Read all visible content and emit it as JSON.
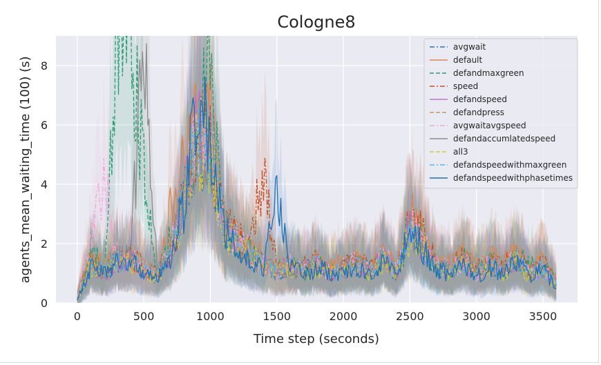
{
  "chart_data": {
    "type": "line",
    "title": "Cologne8",
    "xlabel": "Time step (seconds)",
    "ylabel": "agents_mean_waiting_time (100) (s)",
    "xlim": [
      -160,
      3760
    ],
    "ylim": [
      0,
      9
    ],
    "xticks": [
      0,
      500,
      1000,
      1500,
      2000,
      2500,
      3000,
      3500
    ],
    "yticks": [
      0,
      2,
      4,
      6,
      8
    ],
    "grid": true,
    "background": "#eaeaf2",
    "legend_position": "top-right",
    "series": [
      {
        "name": "avgwait",
        "color": "#1f77b4",
        "dash": "dashdot",
        "x": [
          0,
          100,
          200,
          300,
          400,
          500,
          600,
          700,
          800,
          900,
          1000,
          1100,
          1200,
          1300,
          1400,
          1500,
          1600,
          1700,
          1800,
          1900,
          2000,
          2100,
          2200,
          2300,
          2400,
          2500,
          2600,
          2700,
          2800,
          2900,
          3000,
          3100,
          3200,
          3300,
          3400,
          3500,
          3600
        ],
        "y": [
          0.1,
          1.3,
          1.0,
          1.4,
          1.5,
          1.1,
          0.9,
          1.5,
          3.5,
          5.6,
          5.0,
          2.8,
          2.0,
          1.6,
          1.3,
          1.0,
          1.2,
          1.1,
          1.3,
          1.0,
          1.2,
          1.3,
          1.1,
          1.5,
          1.0,
          2.4,
          1.8,
          1.2,
          1.1,
          1.4,
          1.0,
          1.3,
          1.1,
          1.5,
          1.0,
          1.1,
          0.6
        ]
      },
      {
        "name": "default",
        "color": "#dd8452",
        "dash": "solid",
        "x": [
          0,
          100,
          200,
          300,
          400,
          500,
          600,
          700,
          800,
          900,
          1000,
          1100,
          1200,
          1300,
          1400,
          1500,
          1600,
          1700,
          1800,
          1900,
          2000,
          2100,
          2200,
          2300,
          2400,
          2500,
          2600,
          2700,
          2800,
          2900,
          3000,
          3100,
          3200,
          3300,
          3400,
          3500,
          3600
        ],
        "y": [
          0.2,
          1.5,
          1.2,
          1.6,
          1.4,
          1.3,
          1.0,
          3.0,
          4.5,
          6.0,
          6.5,
          2.6,
          2.4,
          1.9,
          1.5,
          1.0,
          1.4,
          1.0,
          1.5,
          1.2,
          1.3,
          1.6,
          1.2,
          1.7,
          1.1,
          3.0,
          2.4,
          1.4,
          1.3,
          1.6,
          1.2,
          1.5,
          1.3,
          1.8,
          1.1,
          1.4,
          0.8
        ]
      },
      {
        "name": "defandmaxgreen",
        "color": "#2a9d6e",
        "dash": "dashed",
        "x": [
          0,
          100,
          200,
          300,
          400,
          500,
          600,
          700,
          800,
          900,
          1000,
          1100,
          1200,
          1300,
          1400,
          1500,
          1600,
          1700,
          1800,
          1900,
          2000,
          2100,
          2200,
          2300,
          2400,
          2500,
          2600,
          2700,
          2800,
          2900,
          3000,
          3100,
          3200,
          3300,
          3400,
          3500,
          3600
        ],
        "y": [
          0.1,
          1.6,
          1.3,
          9.0,
          9.0,
          4.5,
          1.1,
          2.1,
          3.6,
          5.8,
          7.5,
          2.5,
          2.1,
          1.7,
          1.2,
          1.1,
          1.3,
          1.0,
          1.4,
          1.1,
          1.1,
          1.4,
          1.0,
          1.6,
          1.2,
          2.6,
          2.0,
          1.3,
          1.0,
          1.5,
          1.1,
          1.4,
          1.0,
          1.6,
          1.2,
          1.3,
          0.7
        ]
      },
      {
        "name": "speed",
        "color": "#c44e1f",
        "dash": "dashdot",
        "x": [
          0,
          100,
          200,
          300,
          400,
          500,
          600,
          700,
          800,
          900,
          1000,
          1100,
          1200,
          1300,
          1400,
          1500,
          1600,
          1700,
          1800,
          1900,
          2000,
          2100,
          2200,
          2300,
          2400,
          2500,
          2600,
          2700,
          2800,
          2900,
          3000,
          3100,
          3200,
          3300,
          3400,
          3500,
          3600
        ],
        "y": [
          0.2,
          1.4,
          1.1,
          1.5,
          1.6,
          1.2,
          1.0,
          1.8,
          3.3,
          5.5,
          5.2,
          2.7,
          2.2,
          2.0,
          4.6,
          1.1,
          1.3,
          1.2,
          1.4,
          1.0,
          1.2,
          1.5,
          1.1,
          1.6,
          1.1,
          2.8,
          2.3,
          1.3,
          1.2,
          1.5,
          1.1,
          1.4,
          1.2,
          1.7,
          1.0,
          1.3,
          0.7
        ]
      },
      {
        "name": "defandspeed",
        "color": "#c66fc6",
        "dash": "solid",
        "x": [
          0,
          100,
          200,
          300,
          400,
          500,
          600,
          700,
          800,
          900,
          1000,
          1100,
          1200,
          1300,
          1400,
          1500,
          1600,
          1700,
          1800,
          1900,
          2000,
          2100,
          2200,
          2300,
          2400,
          2500,
          2600,
          2700,
          2800,
          2900,
          3000,
          3100,
          3200,
          3300,
          3400,
          3500,
          3600
        ],
        "y": [
          0.1,
          1.2,
          1.0,
          1.3,
          1.4,
          1.0,
          0.9,
          1.6,
          3.4,
          6.8,
          5.1,
          2.6,
          2.0,
          1.6,
          1.3,
          1.2,
          1.2,
          1.1,
          1.3,
          1.0,
          1.1,
          1.3,
          1.0,
          1.5,
          1.0,
          2.5,
          1.9,
          1.2,
          1.1,
          1.4,
          1.0,
          1.3,
          1.1,
          1.5,
          1.0,
          1.2,
          0.6
        ]
      },
      {
        "name": "defandpress",
        "color": "#c9945c",
        "dash": "dashed",
        "x": [
          0,
          100,
          200,
          300,
          400,
          500,
          600,
          700,
          800,
          900,
          1000,
          1100,
          1200,
          1300,
          1400,
          1500,
          1600,
          1700,
          1800,
          1900,
          2000,
          2100,
          2200,
          2300,
          2400,
          2500,
          2600,
          2700,
          2800,
          2900,
          3000,
          3100,
          3200,
          3300,
          3400,
          3500,
          3600
        ],
        "y": [
          0.2,
          1.4,
          1.2,
          1.5,
          1.6,
          1.2,
          1.0,
          1.9,
          3.6,
          5.4,
          5.3,
          2.8,
          2.1,
          1.8,
          1.4,
          1.1,
          1.4,
          1.1,
          1.4,
          1.1,
          1.2,
          1.4,
          1.1,
          1.6,
          1.1,
          2.7,
          2.1,
          1.3,
          1.2,
          1.5,
          1.1,
          1.4,
          1.2,
          1.6,
          1.1,
          1.3,
          0.7
        ]
      },
      {
        "name": "avgwaitavgspeed",
        "color": "#f2a7d8",
        "dash": "dashdot",
        "x": [
          0,
          100,
          200,
          300,
          400,
          500,
          600,
          700,
          800,
          900,
          1000,
          1100,
          1200,
          1300,
          1400,
          1500,
          1600,
          1700,
          1800,
          1900,
          2000,
          2100,
          2200,
          2300,
          2400,
          2500,
          2600,
          2700,
          2800,
          2900,
          3000,
          3100,
          3200,
          3300,
          3400,
          3500,
          3600
        ],
        "y": [
          0.2,
          2.0,
          4.3,
          1.6,
          1.5,
          1.1,
          1.0,
          1.8,
          3.4,
          5.7,
          5.0,
          2.6,
          2.1,
          1.7,
          1.3,
          1.0,
          1.3,
          1.1,
          1.3,
          1.0,
          1.2,
          1.4,
          1.0,
          1.6,
          1.1,
          2.6,
          2.0,
          1.3,
          1.1,
          1.4,
          1.0,
          1.3,
          1.1,
          1.5,
          1.0,
          1.2,
          0.6
        ]
      },
      {
        "name": "defandaccumlatedspeed",
        "color": "#8c8c8c",
        "dash": "solid",
        "x": [
          0,
          100,
          200,
          300,
          400,
          500,
          600,
          700,
          800,
          900,
          1000,
          1100,
          1200,
          1300,
          1400,
          1500,
          1600,
          1700,
          1800,
          1900,
          2000,
          2100,
          2200,
          2300,
          2400,
          2500,
          2600,
          2700,
          2800,
          2900,
          3000,
          3100,
          3200,
          3300,
          3400,
          3500,
          3600
        ],
        "y": [
          0.1,
          1.3,
          1.1,
          1.5,
          1.5,
          9.0,
          1.0,
          1.7,
          3.4,
          5.6,
          5.1,
          2.7,
          2.0,
          1.6,
          1.3,
          1.0,
          1.2,
          1.0,
          1.3,
          1.0,
          1.1,
          1.3,
          1.0,
          1.5,
          1.0,
          2.5,
          1.9,
          1.2,
          1.1,
          1.4,
          1.0,
          1.3,
          1.1,
          1.5,
          1.0,
          1.2,
          0.6
        ]
      },
      {
        "name": "all3",
        "color": "#d4cc30",
        "dash": "dashed",
        "x": [
          0,
          100,
          200,
          300,
          400,
          500,
          600,
          700,
          800,
          900,
          1000,
          1100,
          1200,
          1300,
          1400,
          1500,
          1600,
          1700,
          1800,
          1900,
          2000,
          2100,
          2200,
          2300,
          2400,
          2500,
          2600,
          2700,
          2800,
          2900,
          3000,
          3100,
          3200,
          3300,
          3400,
          3500,
          3600
        ],
        "y": [
          0.1,
          1.2,
          1.0,
          1.3,
          1.4,
          1.0,
          0.9,
          1.6,
          3.2,
          5.2,
          4.8,
          2.5,
          1.9,
          1.6,
          1.2,
          1.0,
          1.2,
          1.0,
          1.2,
          1.0,
          1.0,
          1.2,
          0.9,
          1.4,
          1.0,
          2.3,
          1.8,
          1.1,
          1.0,
          1.3,
          0.9,
          1.2,
          1.0,
          1.4,
          0.9,
          1.1,
          0.6
        ]
      },
      {
        "name": "defandspeedwithmaxgreen",
        "color": "#56b4e9",
        "dash": "dashdot",
        "x": [
          0,
          100,
          200,
          300,
          400,
          500,
          600,
          700,
          800,
          900,
          1000,
          1100,
          1200,
          1300,
          1400,
          1500,
          1600,
          1700,
          1800,
          1900,
          2000,
          2100,
          2200,
          2300,
          2400,
          2500,
          2600,
          2700,
          2800,
          2900,
          3000,
          3100,
          3200,
          3300,
          3400,
          3500,
          3600
        ],
        "y": [
          0.1,
          1.3,
          1.1,
          1.4,
          1.5,
          1.1,
          1.0,
          1.7,
          3.4,
          5.5,
          5.0,
          2.6,
          2.0,
          1.6,
          1.3,
          1.0,
          1.3,
          1.1,
          1.3,
          1.0,
          1.1,
          1.3,
          1.0,
          1.5,
          1.0,
          2.5,
          1.9,
          1.2,
          1.1,
          1.4,
          1.0,
          1.3,
          1.1,
          1.5,
          1.0,
          1.2,
          0.6
        ]
      },
      {
        "name": "defandspeedwithphasetimes",
        "color": "#1f6fb4",
        "dash": "solid",
        "x": [
          0,
          100,
          200,
          300,
          400,
          500,
          600,
          700,
          800,
          900,
          1000,
          1100,
          1200,
          1300,
          1400,
          1500,
          1600,
          1700,
          1800,
          1900,
          2000,
          2100,
          2200,
          2300,
          2400,
          2500,
          2600,
          2700,
          2800,
          2900,
          3000,
          3100,
          3200,
          3300,
          3400,
          3500,
          3600
        ],
        "y": [
          0.1,
          1.2,
          1.0,
          1.3,
          1.4,
          1.0,
          0.9,
          1.6,
          3.3,
          7.2,
          5.0,
          2.5,
          1.9,
          1.5,
          1.2,
          3.6,
          1.2,
          1.0,
          1.2,
          1.0,
          1.0,
          1.2,
          0.9,
          1.4,
          1.0,
          2.4,
          1.8,
          1.1,
          1.0,
          1.3,
          0.9,
          1.2,
          1.0,
          1.4,
          0.9,
          1.1,
          0.5
        ]
      }
    ]
  }
}
